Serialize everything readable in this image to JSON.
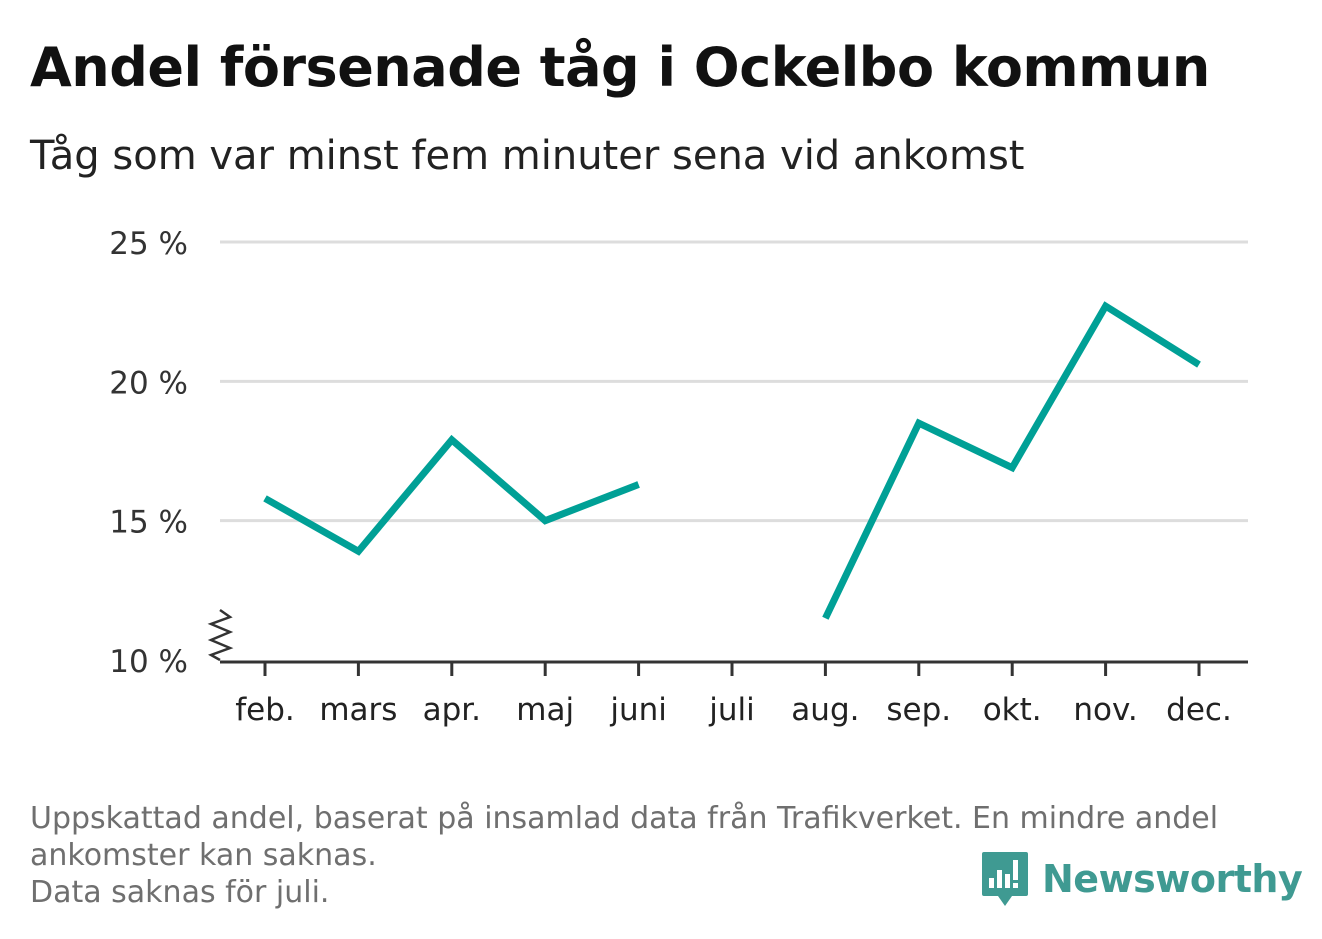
{
  "header": {
    "title": "Andel försenade tåg i Ockelbo kommun",
    "subtitle": "Tåg som var minst fem minuter sena vid ankomst"
  },
  "chart_data": {
    "type": "line",
    "title": "Andel försenade tåg i Ockelbo kommun",
    "subtitle": "Tåg som var minst fem minuter sena vid ankomst",
    "xlabel": "",
    "ylabel": "",
    "categories": [
      "feb.",
      "mars",
      "apr.",
      "maj",
      "juni",
      "juli",
      "aug.",
      "sep.",
      "okt.",
      "nov.",
      "dec."
    ],
    "series": [
      {
        "values": [
          15.8,
          13.9,
          17.9,
          15.0,
          16.3,
          null,
          11.5,
          18.5,
          16.9,
          22.7,
          20.6
        ]
      }
    ],
    "yticks": [
      10,
      15,
      20,
      25
    ],
    "ytick_labels": [
      "10 %",
      "15 %",
      "20 %",
      "25 %"
    ],
    "ylim": [
      10,
      25
    ],
    "axis_break": true,
    "grid": true,
    "line_color": "#00a096",
    "grid_color": "#dddddd"
  },
  "footnote": {
    "line1": "Uppskattad andel, baserat på insamlad data från Trafikverket. En mindre andel",
    "line2": "ankomster kan saknas.",
    "line3": "Data saknas för juli."
  },
  "brand": {
    "name": "Newsworthy",
    "icon": "bar-chart-speech-bubble-icon",
    "color": "#3f9a92"
  }
}
